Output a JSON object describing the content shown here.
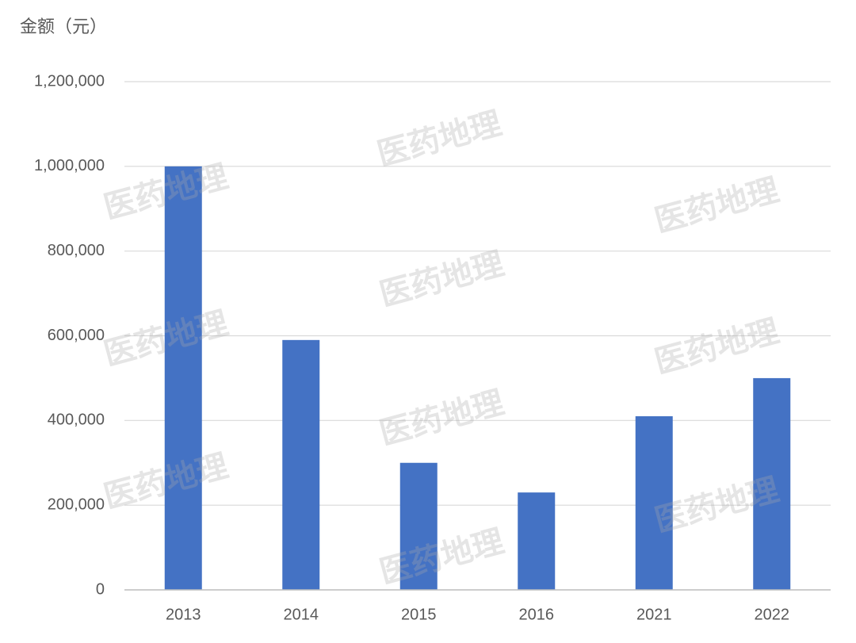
{
  "chart_data": {
    "type": "bar",
    "y_label": "金额（元）",
    "watermark": "医药地理",
    "categories": [
      "2013",
      "2014",
      "2015",
      "2016",
      "2021",
      "2022"
    ],
    "values": [
      1000000,
      590000,
      300000,
      230000,
      410000,
      500000
    ],
    "color": "#4472c4",
    "ylim": [
      0,
      1200000
    ],
    "yticks": [
      0,
      {
        "value": 200000,
        "label": "200,000"
      },
      {
        "value": 400000,
        "label": "400,000"
      },
      {
        "value": 600000,
        "label": "600,000"
      },
      {
        "value": 800000,
        "label": "800,000"
      },
      {
        "value": 1000000,
        "label": "1,000,000"
      },
      {
        "value": 1200000,
        "label": "1,200,000"
      }
    ],
    "grid": true
  }
}
